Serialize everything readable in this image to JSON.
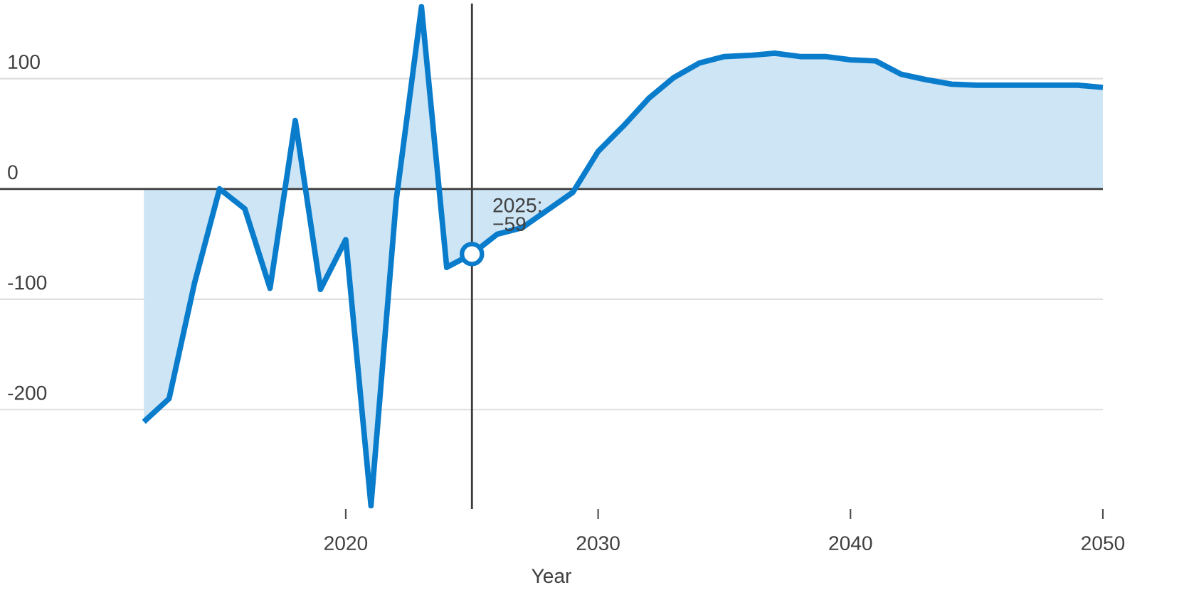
{
  "chart_data": {
    "type": "area",
    "xlabel": "Year",
    "x": [
      2012,
      2013,
      2014,
      2015,
      2016,
      2017,
      2018,
      2019,
      2020,
      2021,
      2022,
      2023,
      2024,
      2025,
      2026,
      2027,
      2028,
      2029,
      2030,
      2031,
      2032,
      2033,
      2034,
      2035,
      2036,
      2037,
      2038,
      2039,
      2040,
      2041,
      2042,
      2043,
      2044,
      2045,
      2046,
      2047,
      2048,
      2049,
      2050
    ],
    "values": [
      -211,
      -190,
      -86,
      0,
      -18,
      -90,
      62,
      -91,
      -46,
      -287,
      -10,
      165,
      -71,
      -59,
      -41,
      -35,
      -19,
      -3,
      34,
      57,
      82,
      101,
      114,
      120,
      121,
      123,
      120,
      120,
      117,
      116,
      104,
      99,
      95,
      94,
      94,
      94,
      94,
      94,
      92
    ],
    "color": "#0a7ccc",
    "xlim": [
      2006.3,
      2050
    ],
    "ylim": [
      -290,
      168
    ],
    "xticks": [
      2020,
      2030,
      2040,
      2050
    ],
    "yticks": [
      -200,
      -100,
      0,
      100
    ],
    "grid": "y",
    "ref_lines": [
      {
        "axis": "x",
        "value": 2025,
        "color": "#3c3c3c"
      },
      {
        "axis": "y",
        "value": 0,
        "color": "#3c3c3c"
      }
    ],
    "annotations": [
      {
        "text": "2025: −59",
        "x": 2025,
        "y": -59
      }
    ]
  }
}
